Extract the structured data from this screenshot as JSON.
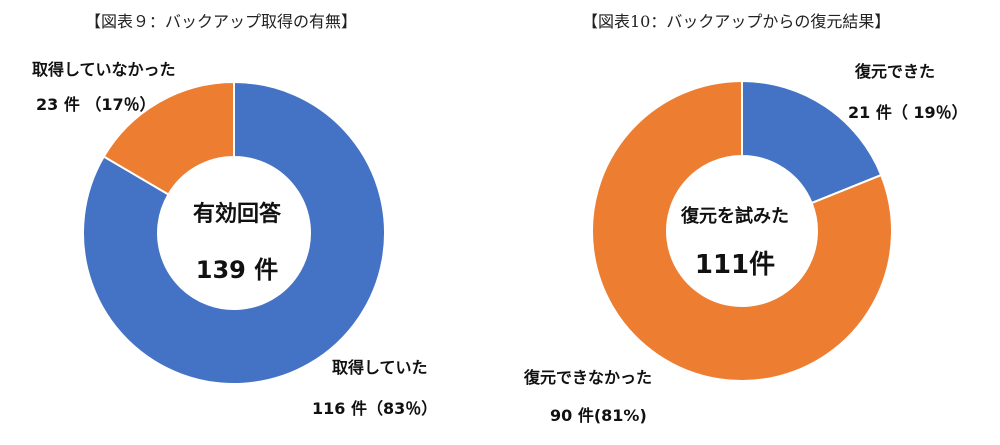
{
  "charts": [
    {
      "title": "【図表９：バックアップ取得の有無】",
      "center_line1": "有効回答",
      "center_line2": "139 件",
      "labels": [
        {
          "name": "取得していた",
          "detail": "116 件（83％）"
        },
        {
          "name": "取得していなかった",
          "detail": "23 件 （17％）"
        }
      ]
    },
    {
      "title": "【図表10：バックアップからの復元結果】",
      "center_line1": "復元を試みた",
      "center_line2": "111件",
      "labels": [
        {
          "name": "復元できた",
          "detail": "21 件（ 19％）"
        },
        {
          "name": "復元できなかった",
          "detail": "90 件(81%)"
        }
      ]
    }
  ],
  "colors": {
    "blue": "#4472C4",
    "orange": "#ED7D31"
  },
  "chart_data": [
    {
      "type": "pie",
      "title": "【図表９：バックアップ取得の有無】",
      "categories": [
        "取得していた",
        "取得していなかった"
      ],
      "values": [
        116,
        23
      ],
      "percent": [
        83,
        17
      ],
      "colors": [
        "#4472C4",
        "#ED7D31"
      ],
      "total": 139
    },
    {
      "type": "pie",
      "title": "【図表10：バックアップからの復元結果】",
      "categories": [
        "復元できた",
        "復元できなかった"
      ],
      "values": [
        21,
        90
      ],
      "percent": [
        19,
        81
      ],
      "colors": [
        "#4472C4",
        "#ED7D31"
      ],
      "total": 111
    }
  ]
}
